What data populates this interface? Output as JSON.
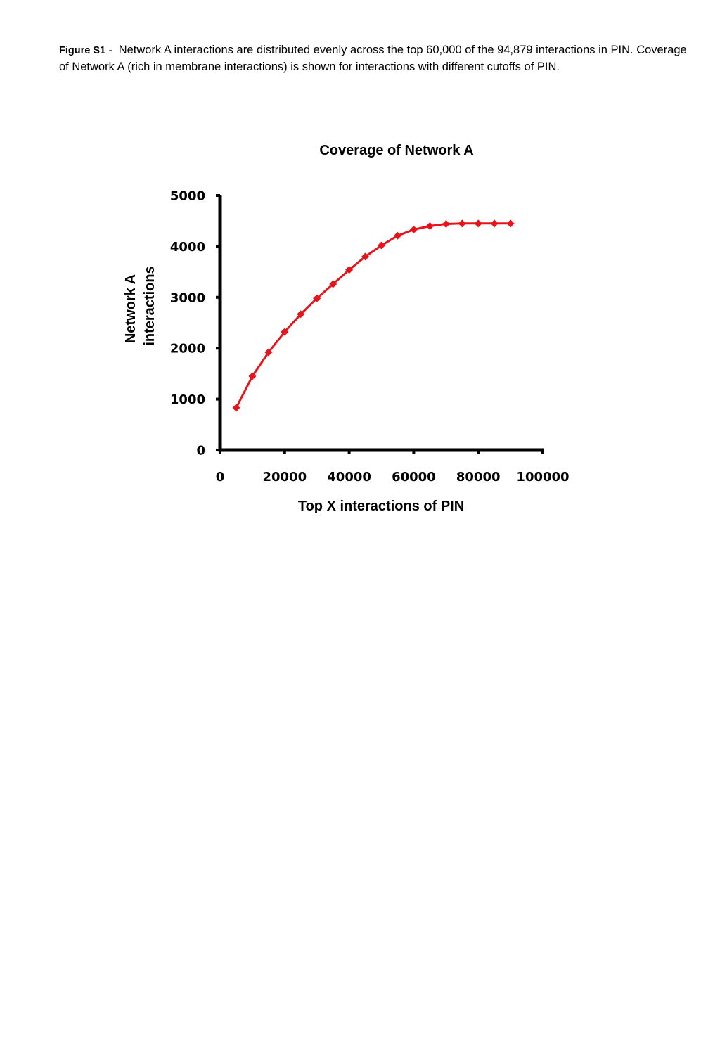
{
  "caption": {
    "label": "Figure S1",
    "separator": "-",
    "text": "Network A interactions are distributed evenly across the top 60,000 of the 94,879 interactions in PIN. Coverage of Network A (rich in membrane interactions) is shown for interactions with different cutoffs of PIN."
  },
  "chart_data": {
    "type": "line",
    "title": "Coverage of Network A",
    "xlabel": "Top X interactions of PIN",
    "ylabel_lines": [
      "Network A",
      "interactions"
    ],
    "xlim": [
      0,
      100000
    ],
    "ylim": [
      0,
      5000
    ],
    "xticks": [
      0,
      20000,
      40000,
      60000,
      80000,
      100000
    ],
    "yticks": [
      0,
      1000,
      2000,
      3000,
      4000,
      5000
    ],
    "grid": false,
    "legend": "none",
    "series": [
      {
        "color": "#e8141b",
        "marker": "diamond",
        "x": [
          5000,
          10000,
          15000,
          20000,
          25000,
          30000,
          35000,
          40000,
          45000,
          50000,
          55000,
          60000,
          65000,
          70000,
          75000,
          80000,
          85000,
          90000
        ],
        "y": [
          830,
          1450,
          1920,
          2320,
          2670,
          2980,
          3260,
          3540,
          3800,
          4020,
          4210,
          4330,
          4400,
          4440,
          4450,
          4450,
          4450,
          4450
        ]
      }
    ]
  }
}
